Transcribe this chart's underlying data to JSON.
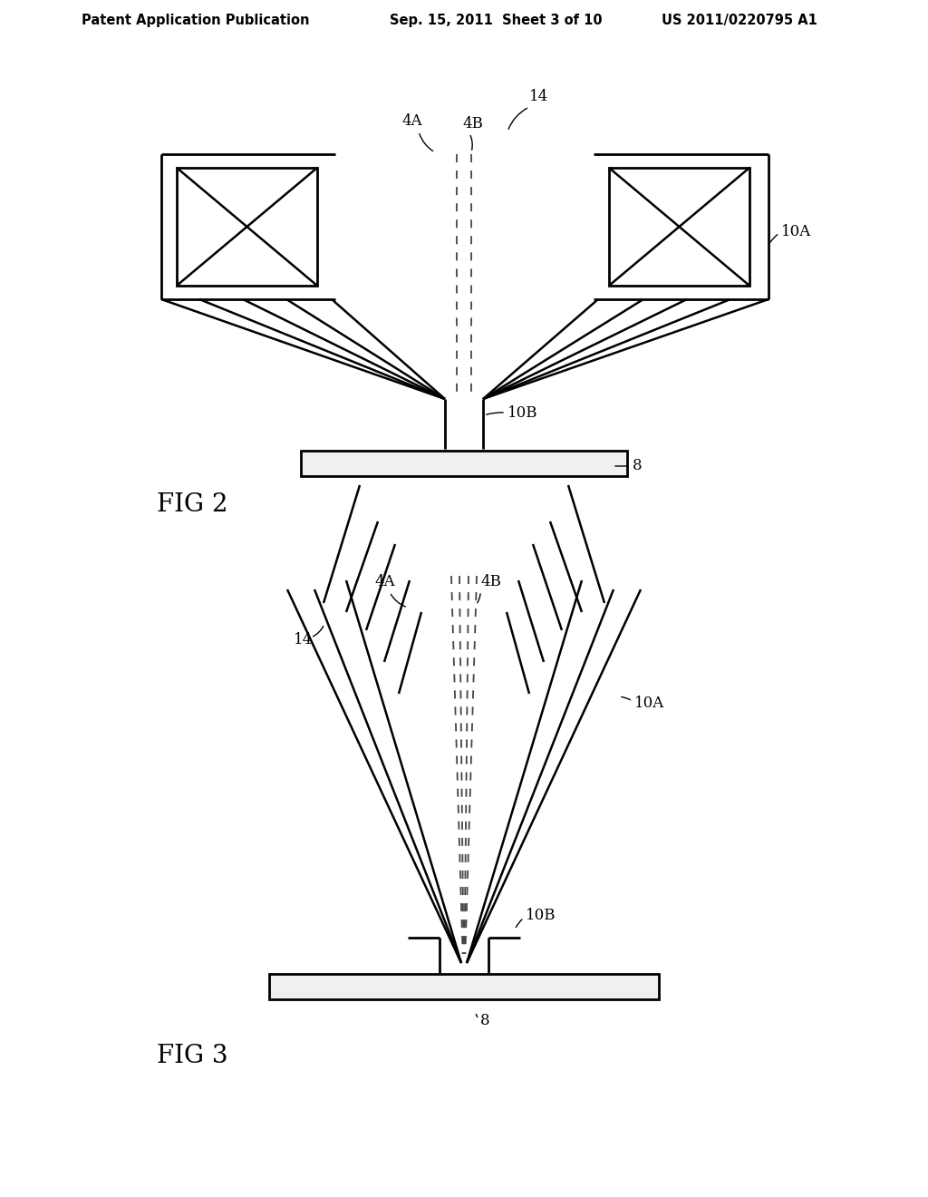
{
  "bg_color": "#ffffff",
  "line_color": "#000000",
  "header_text_left": "Patent Application Publication",
  "header_text_mid": "Sep. 15, 2011  Sheet 3 of 10",
  "header_text_right": "US 2011/0220795 A1",
  "fig2_label": "FIG 2",
  "fig3_label": "FIG 3",
  "header_fontsize": 10.5,
  "label_fontsize": 20,
  "annot_fontsize": 12
}
